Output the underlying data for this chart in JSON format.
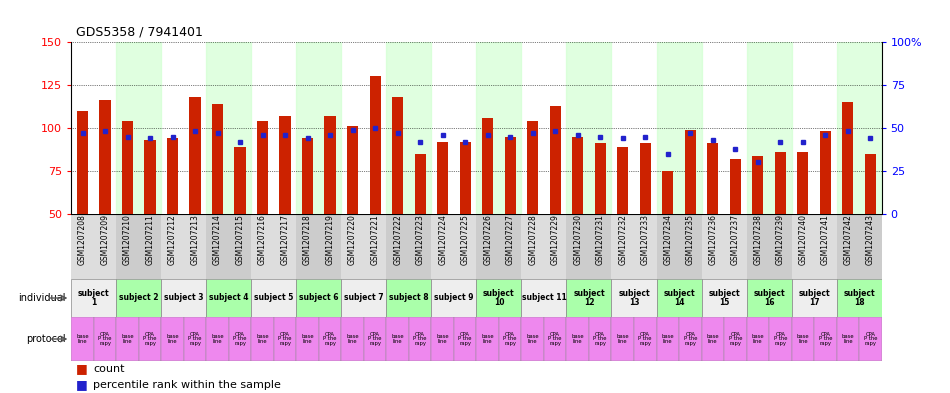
{
  "title": "GDS5358 / 7941401",
  "samples": [
    "GSM1207208",
    "GSM1207209",
    "GSM1207210",
    "GSM1207211",
    "GSM1207212",
    "GSM1207213",
    "GSM1207214",
    "GSM1207215",
    "GSM1207216",
    "GSM1207217",
    "GSM1207218",
    "GSM1207219",
    "GSM1207220",
    "GSM1207221",
    "GSM1207222",
    "GSM1207223",
    "GSM1207224",
    "GSM1207225",
    "GSM1207226",
    "GSM1207227",
    "GSM1207228",
    "GSM1207229",
    "GSM1207230",
    "GSM1207231",
    "GSM1207232",
    "GSM1207233",
    "GSM1207234",
    "GSM1207235",
    "GSM1207236",
    "GSM1207237",
    "GSM1207238",
    "GSM1207239",
    "GSM1207240",
    "GSM1207241",
    "GSM1207242",
    "GSM1207243"
  ],
  "counts": [
    110,
    116,
    104,
    93,
    94,
    118,
    114,
    89,
    104,
    107,
    94,
    107,
    101,
    130,
    118,
    85,
    92,
    92,
    106,
    95,
    104,
    113,
    95,
    91,
    89,
    91,
    75,
    99,
    91,
    82,
    84,
    86,
    86,
    98,
    115,
    85
  ],
  "percentiles": [
    47,
    48,
    45,
    44,
    45,
    48,
    47,
    42,
    46,
    46,
    44,
    46,
    49,
    50,
    47,
    42,
    46,
    42,
    46,
    45,
    47,
    48,
    46,
    45,
    44,
    45,
    35,
    47,
    43,
    38,
    30,
    42,
    42,
    46,
    48,
    44
  ],
  "ylim_left": [
    50,
    150
  ],
  "ylim_right": [
    0,
    100
  ],
  "yticks_left": [
    50,
    75,
    100,
    125,
    150
  ],
  "yticks_right": [
    0,
    25,
    50,
    75,
    100
  ],
  "bar_color": "#cc2200",
  "dot_color": "#2222cc",
  "bar_width": 0.5,
  "subjects": [
    {
      "label": "subject\n1",
      "start": 0,
      "end": 2,
      "odd": true
    },
    {
      "label": "subject 2",
      "start": 2,
      "end": 4,
      "odd": false
    },
    {
      "label": "subject 3",
      "start": 4,
      "end": 6,
      "odd": true
    },
    {
      "label": "subject 4",
      "start": 6,
      "end": 8,
      "odd": false
    },
    {
      "label": "subject 5",
      "start": 8,
      "end": 10,
      "odd": true
    },
    {
      "label": "subject 6",
      "start": 10,
      "end": 12,
      "odd": false
    },
    {
      "label": "subject 7",
      "start": 12,
      "end": 14,
      "odd": true
    },
    {
      "label": "subject 8",
      "start": 14,
      "end": 16,
      "odd": false
    },
    {
      "label": "subject 9",
      "start": 16,
      "end": 18,
      "odd": true
    },
    {
      "label": "subject\n10",
      "start": 18,
      "end": 20,
      "odd": false
    },
    {
      "label": "subject 11",
      "start": 20,
      "end": 22,
      "odd": true
    },
    {
      "label": "subject\n12",
      "start": 22,
      "end": 24,
      "odd": false
    },
    {
      "label": "subject\n13",
      "start": 24,
      "end": 26,
      "odd": true
    },
    {
      "label": "subject\n14",
      "start": 26,
      "end": 28,
      "odd": false
    },
    {
      "label": "subject\n15",
      "start": 28,
      "end": 30,
      "odd": true
    },
    {
      "label": "subject\n16",
      "start": 30,
      "end": 32,
      "odd": false
    },
    {
      "label": "subject\n17",
      "start": 32,
      "end": 34,
      "odd": true
    },
    {
      "label": "subject\n18",
      "start": 34,
      "end": 36,
      "odd": false
    }
  ],
  "indiv_color_odd": "#eeeeee",
  "indiv_color_even": "#aaffaa",
  "chart_bg_even": "#ccffcc",
  "protocol_bg": "#ee88ee",
  "legend_count_color": "#cc2200",
  "legend_dot_color": "#2222cc",
  "legend_count_label": "count",
  "legend_dot_label": "percentile rank within the sample",
  "individual_label": "individual",
  "protocol_label": "protocol"
}
